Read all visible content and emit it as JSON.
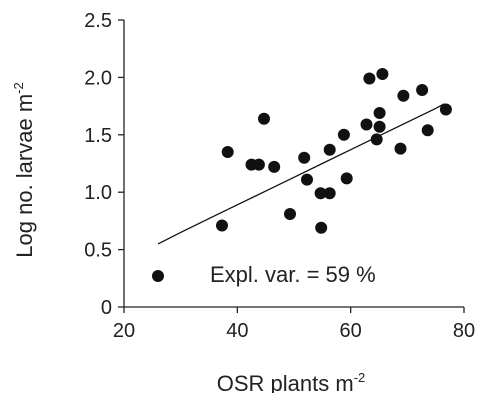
{
  "chart_data": {
    "type": "scatter",
    "title": "",
    "xlabel": {
      "text": "OSR plants m",
      "sup": "-2"
    },
    "ylabel": {
      "text": "Log no. larvae m",
      "sup": "-2"
    },
    "xlim": [
      20,
      80
    ],
    "ylim": [
      0,
      2.5
    ],
    "x_ticks": [
      {
        "value": 20,
        "label": "20"
      },
      {
        "value": 40,
        "label": "40"
      },
      {
        "value": 60,
        "label": "60"
      },
      {
        "value": 80,
        "label": "80"
      }
    ],
    "y_ticks": [
      {
        "value": 0,
        "label": "0"
      },
      {
        "value": 0.5,
        "label": "0.5"
      },
      {
        "value": 1.0,
        "label": "1.0"
      },
      {
        "value": 1.5,
        "label": "1.5"
      },
      {
        "value": 2.0,
        "label": "2.0"
      },
      {
        "value": 2.5,
        "label": "2.5"
      }
    ],
    "grid": false,
    "annotation": "Expl. var. = 59 %",
    "points": [
      {
        "x": 26.0,
        "y": 0.27
      },
      {
        "x": 37.3,
        "y": 0.71
      },
      {
        "x": 38.3,
        "y": 1.35
      },
      {
        "x": 42.5,
        "y": 1.24
      },
      {
        "x": 43.8,
        "y": 1.24
      },
      {
        "x": 44.7,
        "y": 1.64
      },
      {
        "x": 46.5,
        "y": 1.22
      },
      {
        "x": 49.3,
        "y": 0.81
      },
      {
        "x": 51.8,
        "y": 1.3
      },
      {
        "x": 52.3,
        "y": 1.11
      },
      {
        "x": 54.7,
        "y": 0.99
      },
      {
        "x": 54.8,
        "y": 0.69
      },
      {
        "x": 56.3,
        "y": 0.99
      },
      {
        "x": 56.3,
        "y": 1.37
      },
      {
        "x": 58.8,
        "y": 1.5
      },
      {
        "x": 59.3,
        "y": 1.12
      },
      {
        "x": 62.8,
        "y": 1.59
      },
      {
        "x": 63.3,
        "y": 1.99
      },
      {
        "x": 64.6,
        "y": 1.46
      },
      {
        "x": 65.1,
        "y": 1.57
      },
      {
        "x": 65.1,
        "y": 1.69
      },
      {
        "x": 65.6,
        "y": 2.03
      },
      {
        "x": 68.8,
        "y": 1.38
      },
      {
        "x": 69.3,
        "y": 1.84
      },
      {
        "x": 72.6,
        "y": 1.89
      },
      {
        "x": 73.6,
        "y": 1.54
      },
      {
        "x": 76.8,
        "y": 1.72
      }
    ],
    "fit_line": {
      "x": [
        26,
        30,
        35,
        40,
        45,
        50,
        55,
        60,
        65,
        70,
        75,
        76.5
      ],
      "y": [
        0.55,
        0.65,
        0.77,
        0.89,
        1.01,
        1.13,
        1.25,
        1.37,
        1.49,
        1.61,
        1.73,
        1.77
      ]
    },
    "colors": {
      "points": "#111111",
      "line": "#111111",
      "axes": "#222222"
    }
  }
}
